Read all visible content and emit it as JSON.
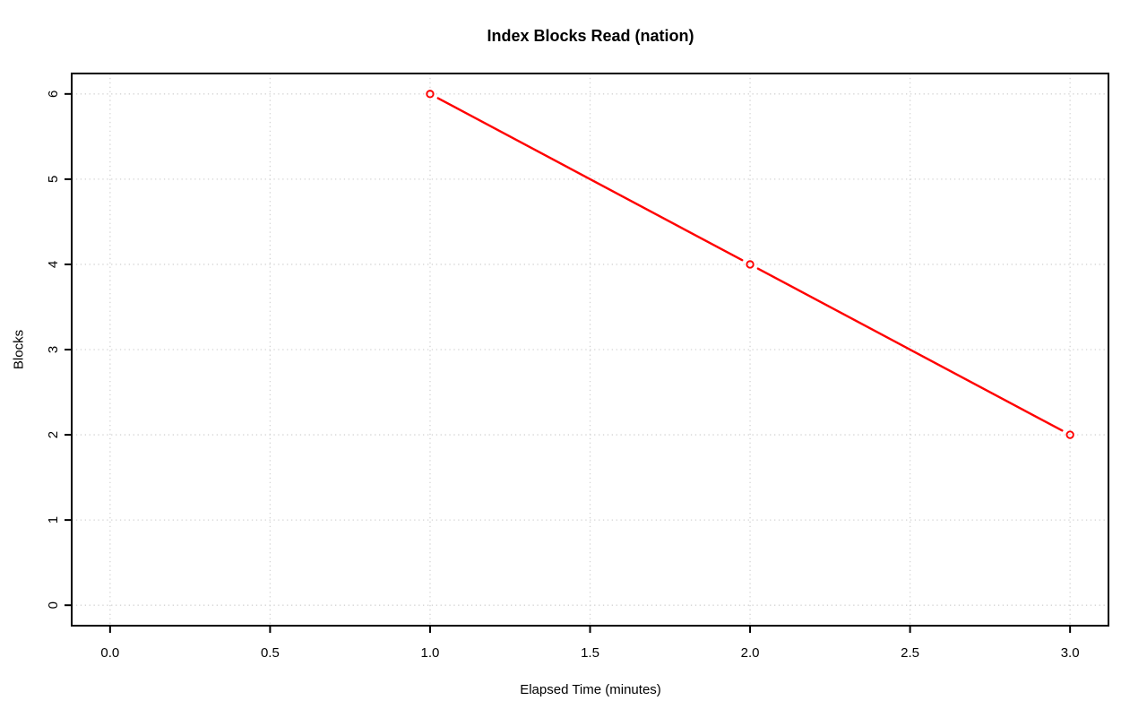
{
  "page": {
    "background_color": "#ffffff"
  },
  "chart_data": {
    "type": "line",
    "title": "Index Blocks Read (nation)",
    "xlabel": "Elapsed Time (minutes)",
    "ylabel": "Blocks",
    "x": [
      1,
      2,
      3
    ],
    "y": [
      6,
      4,
      2
    ],
    "xlim": [
      -0.12,
      3.12
    ],
    "ylim": [
      -0.24,
      6.24
    ],
    "xticks": [
      0,
      0.5,
      1,
      1.5,
      2,
      2.5,
      3
    ],
    "xtick_labels": [
      "0.0",
      "0.5",
      "1.0",
      "1.5",
      "2.0",
      "2.5",
      "3.0"
    ],
    "yticks": [
      0,
      1,
      2,
      3,
      4,
      5,
      6
    ],
    "ytick_labels": [
      "0",
      "1",
      "2",
      "3",
      "4",
      "5",
      "6"
    ],
    "grid": true,
    "grid_style": "dotted",
    "marker": "open-circle",
    "line_color": "#ff0000",
    "grid_color": "#d3d3d3",
    "axis_color": "#000000",
    "text_color": "#000000",
    "legend": null
  }
}
